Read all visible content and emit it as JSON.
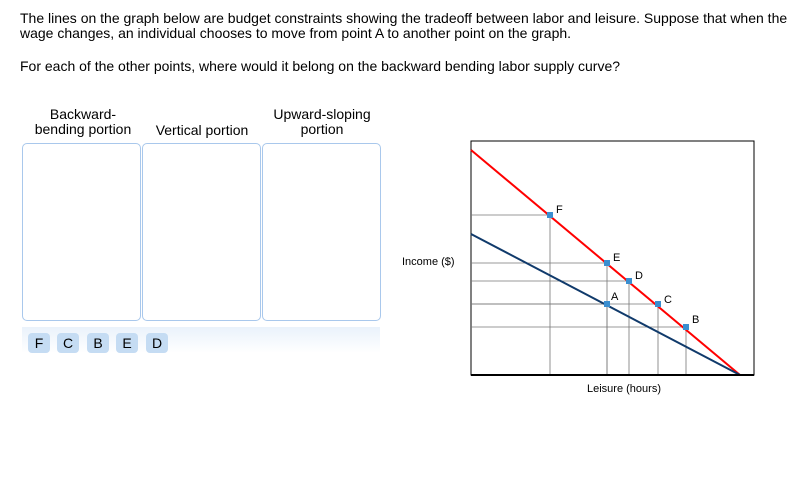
{
  "question": {
    "text": "The lines on the graph below are budget constraints showing the tradeoff between labor and leisure. Suppose that when the wage changes, an individual chooses to move from point A to another point on the graph.",
    "prompt": "For each of the other points, where would it belong on the backward bending labor supply curve?"
  },
  "bins": [
    {
      "label": "Backward-\nbending portion"
    },
    {
      "label": "Vertical portion"
    },
    {
      "label": "Upward-sloping\nportion"
    }
  ],
  "chips": [
    "F",
    "C",
    "B",
    "E",
    "D"
  ],
  "graph": {
    "ylabel": "Income ($)",
    "xlabel": "Leisure (hours)",
    "points": [
      "F",
      "E",
      "D",
      "A",
      "C",
      "B"
    ],
    "colors": {
      "new_constraint": "#ff0000",
      "original_constraint": "#103a6b",
      "point": "#3a8ed0"
    }
  }
}
